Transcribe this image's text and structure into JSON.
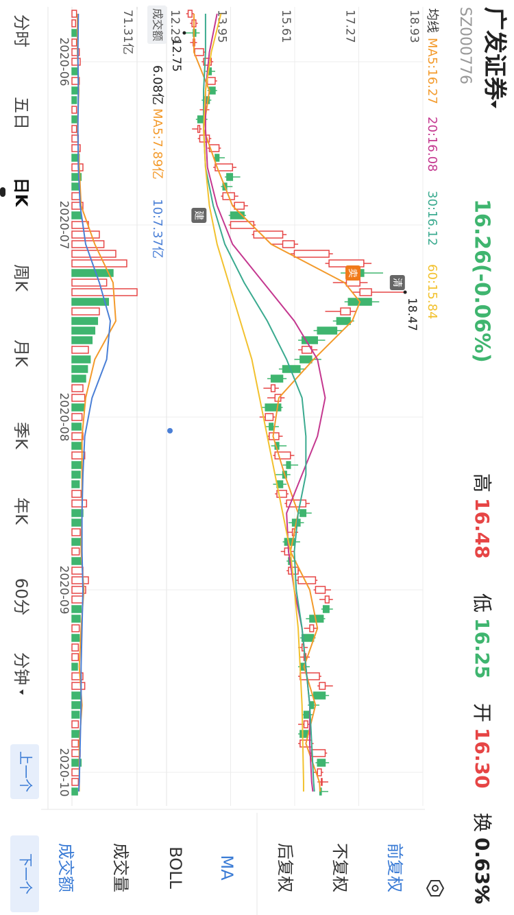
{
  "header": {
    "title": "广发证券",
    "code": "SZ000776",
    "price": "16.26(-0.06%)",
    "stats": [
      {
        "label": "高",
        "value": "16.48"
      },
      {
        "label": "低",
        "value": "16.25"
      },
      {
        "label": "开",
        "value": "16.30"
      },
      {
        "label": "换",
        "value": "0.63%"
      }
    ]
  },
  "ma_legend_title": "均线",
  "volume_header": {
    "title": "成交额",
    "value": "6.08亿",
    "items": [
      {
        "text": "MA5:7.89亿",
        "color": "#f39a2b"
      },
      {
        "text": "10:7.37亿",
        "color": "#4a7fd6"
      }
    ]
  },
  "chart_data": [
    {
      "type": "candlestick",
      "up_color": "#e64545",
      "down_color": "#3fb56f",
      "ylim": [
        12.29,
        18.93
      ],
      "yticks": [
        12.29,
        13.95,
        15.61,
        17.27,
        18.93
      ],
      "grid": true,
      "ohlc": [
        [
          12.85,
          13.0,
          12.8,
          12.95
        ],
        [
          12.95,
          13.1,
          12.9,
          13.05
        ],
        [
          13.05,
          13.15,
          12.75,
          12.98
        ],
        [
          12.98,
          13.08,
          12.9,
          13.02
        ],
        [
          13.02,
          13.3,
          13.0,
          13.25
        ],
        [
          13.25,
          13.5,
          13.2,
          13.45
        ],
        [
          13.45,
          13.55,
          13.3,
          13.35
        ],
        [
          13.35,
          13.6,
          13.3,
          13.55
        ],
        [
          13.55,
          13.6,
          13.35,
          13.4
        ],
        [
          13.4,
          13.45,
          13.2,
          13.25
        ],
        [
          13.25,
          13.4,
          13.15,
          13.3
        ],
        [
          13.3,
          13.35,
          13.05,
          13.1
        ],
        [
          13.1,
          13.2,
          12.95,
          13.15
        ],
        [
          13.15,
          13.45,
          13.1,
          13.4
        ],
        [
          13.4,
          13.7,
          13.35,
          13.65
        ],
        [
          13.65,
          13.8,
          13.5,
          13.55
        ],
        [
          13.55,
          14.1,
          13.5,
          14.0
        ],
        [
          14.0,
          14.2,
          13.8,
          13.85
        ],
        [
          13.85,
          14.0,
          13.7,
          13.75
        ],
        [
          13.75,
          14.15,
          13.7,
          14.05
        ],
        [
          14.05,
          14.4,
          14.0,
          14.3
        ],
        [
          14.3,
          14.35,
          13.9,
          13.95
        ],
        [
          13.95,
          14.6,
          13.9,
          14.55
        ],
        [
          14.55,
          15.4,
          14.5,
          15.3
        ],
        [
          15.3,
          15.7,
          15.0,
          15.6
        ],
        [
          15.6,
          16.6,
          15.5,
          16.5
        ],
        [
          16.5,
          17.6,
          16.4,
          17.4
        ],
        [
          17.4,
          17.9,
          16.8,
          16.95
        ],
        [
          16.95,
          17.5,
          16.6,
          17.3
        ],
        [
          17.3,
          18.47,
          17.1,
          17.6
        ],
        [
          17.6,
          17.8,
          16.9,
          17.0
        ],
        [
          16.8,
          17.2,
          16.4,
          17.05
        ],
        [
          17.05,
          17.15,
          16.6,
          16.7
        ],
        [
          16.7,
          16.85,
          16.1,
          16.2
        ],
        [
          16.2,
          16.4,
          15.7,
          15.8
        ],
        [
          15.8,
          16.2,
          15.7,
          16.05
        ],
        [
          16.05,
          16.3,
          15.6,
          15.75
        ],
        [
          15.75,
          15.9,
          15.2,
          15.3
        ],
        [
          15.3,
          15.4,
          14.9,
          15.0
        ],
        [
          15.0,
          15.2,
          14.8,
          15.1
        ],
        [
          15.1,
          15.35,
          14.9,
          15.25
        ],
        [
          15.25,
          15.3,
          14.75,
          14.85
        ],
        [
          14.85,
          15.1,
          14.7,
          15.05
        ],
        [
          15.05,
          15.2,
          14.85,
          14.95
        ],
        [
          14.95,
          15.3,
          14.9,
          15.2
        ],
        [
          15.2,
          15.4,
          15.0,
          15.1
        ],
        [
          15.1,
          15.6,
          15.05,
          15.5
        ],
        [
          15.5,
          15.7,
          15.3,
          15.4
        ],
        [
          15.4,
          15.5,
          15.1,
          15.3
        ],
        [
          15.3,
          15.4,
          15.05,
          15.15
        ],
        [
          15.15,
          15.45,
          15.1,
          15.4
        ],
        [
          15.4,
          16.0,
          15.35,
          15.9
        ],
        [
          15.9,
          16.05,
          15.7,
          15.75
        ],
        [
          15.75,
          15.85,
          15.45,
          15.55
        ],
        [
          15.55,
          15.7,
          15.4,
          15.6
        ],
        [
          15.6,
          15.75,
          15.3,
          15.35
        ],
        [
          15.35,
          15.6,
          15.25,
          15.5
        ],
        [
          15.5,
          15.65,
          15.4,
          15.45
        ],
        [
          15.45,
          15.75,
          15.4,
          15.7
        ],
        [
          15.7,
          16.2,
          15.65,
          16.15
        ],
        [
          16.15,
          16.55,
          16.1,
          16.4
        ],
        [
          16.4,
          16.6,
          16.25,
          16.5
        ],
        [
          16.5,
          16.6,
          16.3,
          16.35
        ],
        [
          16.35,
          16.4,
          15.9,
          16.0
        ],
        [
          16.0,
          16.2,
          15.85,
          16.1
        ],
        [
          16.1,
          16.15,
          15.75,
          15.8
        ],
        [
          15.8,
          15.95,
          15.7,
          15.85
        ],
        [
          15.85,
          16.0,
          15.75,
          15.9
        ],
        [
          15.9,
          16.0,
          15.7,
          15.75
        ],
        [
          15.75,
          16.3,
          15.7,
          16.25
        ],
        [
          16.25,
          16.6,
          16.2,
          16.4
        ],
        [
          16.4,
          16.5,
          16.0,
          16.1
        ],
        [
          16.1,
          16.25,
          15.95,
          16.0
        ],
        [
          16.0,
          16.1,
          15.8,
          15.85
        ],
        [
          15.85,
          16.0,
          15.7,
          15.95
        ],
        [
          15.95,
          16.05,
          15.7,
          15.75
        ],
        [
          15.75,
          16.1,
          15.7,
          16.05
        ],
        [
          16.05,
          16.45,
          16.0,
          16.4
        ],
        [
          16.4,
          16.5,
          16.15,
          16.2
        ],
        [
          16.2,
          16.35,
          16.1,
          16.3
        ],
        [
          16.3,
          16.48,
          16.2,
          16.32
        ],
        [
          16.3,
          16.48,
          16.25,
          16.26
        ]
      ],
      "lines": [
        {
          "name": "MA5:16.27",
          "color": "#f39a2b",
          "x": [
            0,
            4,
            8,
            12,
            16,
            20,
            24,
            28,
            30,
            32,
            36,
            40,
            44,
            48,
            52,
            56,
            60,
            64,
            68,
            72,
            76,
            80,
            81
          ],
          "values": [
            13.0,
            13.0,
            13.4,
            13.25,
            13.6,
            14.0,
            15.0,
            16.9,
            17.3,
            17.1,
            16.1,
            15.2,
            15.05,
            15.35,
            15.7,
            15.5,
            16.0,
            16.2,
            15.85,
            16.15,
            15.9,
            16.25,
            16.27
          ]
        },
        {
          "name": "20:16.08",
          "color": "#c4378f",
          "x": [
            0,
            4,
            8,
            12,
            16,
            20,
            24,
            28,
            32,
            36,
            40,
            44,
            48,
            52,
            56,
            60,
            64,
            68,
            72,
            76,
            80,
            81
          ],
          "values": [
            13.6,
            13.4,
            13.3,
            13.3,
            13.35,
            13.6,
            14.0,
            14.8,
            15.6,
            16.2,
            16.4,
            16.2,
            15.8,
            15.4,
            15.45,
            15.6,
            15.8,
            15.9,
            16.0,
            16.0,
            16.05,
            16.08
          ]
        },
        {
          "name": "30:16.12",
          "color": "#3aaa8f",
          "x": [
            0,
            4,
            8,
            12,
            16,
            20,
            24,
            28,
            32,
            36,
            40,
            44,
            48,
            52,
            56,
            60,
            64,
            68,
            72,
            76,
            80,
            81
          ],
          "values": [
            13.3,
            13.3,
            13.25,
            13.25,
            13.3,
            13.5,
            13.8,
            14.3,
            14.9,
            15.4,
            15.8,
            15.9,
            15.9,
            15.7,
            15.6,
            15.65,
            15.8,
            15.9,
            16.0,
            16.05,
            16.1,
            16.12
          ]
        },
        {
          "name": "60:15.84",
          "color": "#f2c12e",
          "x": [
            0,
            4,
            8,
            12,
            16,
            20,
            24,
            28,
            32,
            36,
            40,
            44,
            48,
            52,
            56,
            60,
            64,
            68,
            72,
            76,
            80,
            81
          ],
          "values": [
            13.7,
            13.45,
            13.3,
            13.25,
            13.3,
            13.4,
            13.6,
            13.9,
            14.2,
            14.5,
            14.7,
            14.9,
            15.1,
            15.3,
            15.5,
            15.6,
            15.7,
            15.75,
            15.8,
            15.82,
            15.84,
            15.84
          ]
        }
      ],
      "annotations": [
        {
          "text": "18.47",
          "x": 29,
          "y": 18.47
        },
        {
          "text": "12.75",
          "x": 2,
          "y": 12.75
        }
      ],
      "tags": [
        {
          "text": "卖",
          "x": 27,
          "y": 17.12,
          "color": "#f07a1a"
        },
        {
          "text": "清",
          "x": 28,
          "y": 18.27,
          "color": "#666666"
        },
        {
          "text": "建",
          "x": 21,
          "y": 13.13,
          "color": "#666666"
        }
      ]
    },
    {
      "type": "bar",
      "up_color": "#e64545",
      "down_color": "#3fb56f",
      "categories": [
        null,
        null,
        null,
        null,
        null,
        "2020-06",
        null,
        null,
        null,
        null,
        null,
        null,
        null,
        null,
        null,
        null,
        null,
        null,
        null,
        null,
        null,
        null,
        "2020-07",
        null,
        null,
        null,
        null,
        null,
        null,
        null,
        null,
        null,
        null,
        null,
        null,
        null,
        null,
        null,
        null,
        null,
        null,
        null,
        "2020-08",
        null,
        null,
        null,
        null,
        null,
        null,
        null,
        null,
        null,
        null,
        null,
        null,
        null,
        null,
        null,
        null,
        null,
        "2020-09",
        null,
        null,
        null,
        null,
        null,
        null,
        null,
        null,
        null,
        null,
        null,
        null,
        null,
        null,
        null,
        null,
        null,
        null,
        "2020-10",
        null,
        null
      ],
      "values": [
        5,
        4,
        6,
        5,
        8,
        9,
        7,
        8,
        6,
        5,
        5,
        6,
        5,
        7,
        9,
        8,
        12,
        10,
        8,
        9,
        12,
        10,
        18,
        30,
        35,
        48,
        60,
        45,
        38,
        71.31,
        40,
        30,
        28,
        25,
        22,
        18,
        20,
        17,
        15,
        12,
        14,
        13,
        11,
        10,
        12,
        10,
        14,
        11,
        9,
        8,
        10,
        16,
        12,
        10,
        9,
        11,
        8,
        10,
        12,
        18,
        15,
        12,
        10,
        9,
        8,
        8,
        7,
        7,
        6,
        12,
        14,
        10,
        9,
        8,
        7,
        8,
        7,
        9,
        10,
        8,
        7,
        6.08
      ],
      "ylim": [
        0,
        71.31
      ],
      "yticks": [
        {
          "value": 71.31,
          "label": "71.31亿"
        }
      ],
      "lines": [
        {
          "name": "MA5",
          "color": "#f39a2b",
          "x": [
            0,
            4,
            8,
            12,
            16,
            20,
            24,
            28,
            32,
            36,
            40,
            44,
            48,
            52,
            56,
            60,
            64,
            68,
            72,
            76,
            80,
            81
          ],
          "values": [
            6,
            6,
            7.5,
            6,
            8,
            10,
            25,
            45,
            48,
            25,
            15,
            11,
            11,
            11,
            10,
            13,
            10,
            8,
            11,
            8,
            8,
            7.89
          ]
        },
        {
          "name": "MA10",
          "color": "#4a7fd6",
          "x": [
            0,
            4,
            8,
            12,
            16,
            20,
            24,
            28,
            32,
            36,
            40,
            44,
            48,
            52,
            56,
            60,
            64,
            68,
            72,
            76,
            80,
            81
          ],
          "values": [
            7,
            6.5,
            7,
            6.5,
            7,
            9,
            15,
            30,
            42,
            38,
            22,
            14,
            12,
            11,
            11,
            12,
            11,
            10,
            10,
            9,
            8,
            7.37
          ]
        }
      ]
    }
  ],
  "tabs": [
    "分时",
    "五日",
    "日K",
    "周K",
    "月K",
    "季K",
    "年K",
    "60分",
    "分钟"
  ],
  "active_tab": 2,
  "options": [
    {
      "text": "前复权",
      "active": true
    },
    {
      "text": "不复权",
      "active": false
    },
    {
      "text": "后复权",
      "active": false
    },
    {
      "text": "MA",
      "active": true
    },
    {
      "text": "BOLL",
      "active": false
    },
    {
      "text": "成交量",
      "active": false
    },
    {
      "text": "成交额",
      "active": true
    }
  ],
  "buttons": {
    "prev": "上一个",
    "next": "下一个"
  }
}
